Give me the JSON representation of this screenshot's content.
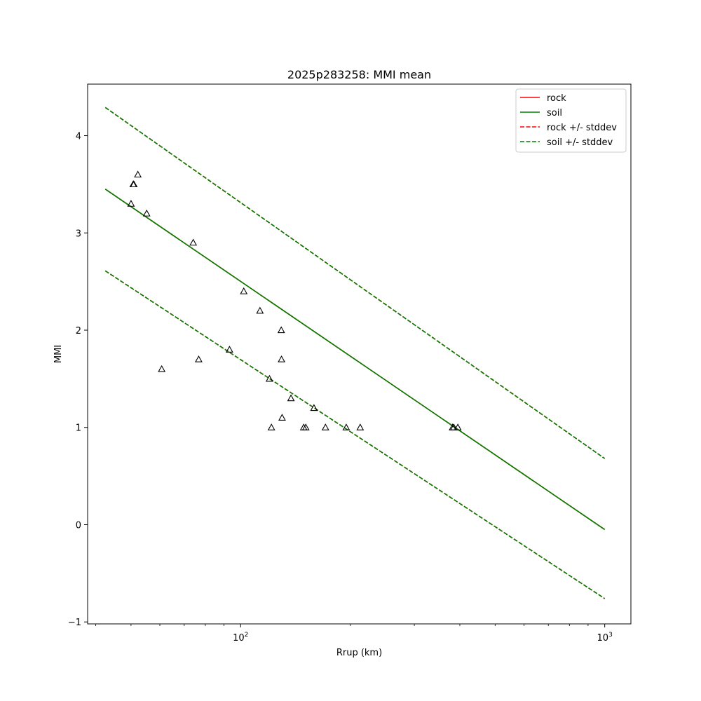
{
  "chart_data": {
    "type": "line",
    "title": "2025p283258: MMI mean",
    "xlabel": "Rrup (km)",
    "ylabel": "MMI",
    "xscale": "log",
    "xlim": [
      38,
      1180
    ],
    "ylim": [
      -1.02,
      4.53
    ],
    "x_ticks": [
      {
        "value": 100,
        "base": "10",
        "exp": "2"
      },
      {
        "value": 1000,
        "base": "10",
        "exp": "3"
      }
    ],
    "x_minor_ticks": [
      40,
      50,
      60,
      70,
      80,
      90,
      200,
      300,
      400,
      500,
      600,
      700,
      800,
      900
    ],
    "y_ticks": [
      {
        "value": -1,
        "label": "−1"
      },
      {
        "value": 0,
        "label": "0"
      },
      {
        "value": 1,
        "label": "1"
      },
      {
        "value": 2,
        "label": "2"
      },
      {
        "value": 3,
        "label": "3"
      },
      {
        "value": 4,
        "label": "4"
      }
    ],
    "legend_position": "top-right",
    "grid": false,
    "series": [
      {
        "name": "rock",
        "color": "#ff0000",
        "dash": "solid",
        "x": [
          42.5,
          1000
        ],
        "y": [
          3.45,
          -0.05
        ]
      },
      {
        "name": "soil",
        "color": "#008000",
        "dash": "solid",
        "x": [
          42.5,
          1000
        ],
        "y": [
          3.45,
          -0.05
        ]
      },
      {
        "name": "rock +/- stddev",
        "color": "#ff0000",
        "dash": "dashed",
        "x": [
          42.5,
          1000
        ],
        "y": [
          4.29,
          0.68
        ]
      },
      {
        "name": "rock +/- stddev lower",
        "color": "#ff0000",
        "dash": "dashed",
        "x": [
          42.5,
          1000
        ],
        "y": [
          2.61,
          -0.76
        ]
      },
      {
        "name": "soil +/- stddev",
        "color": "#008000",
        "dash": "dashed",
        "x": [
          42.5,
          1000
        ],
        "y": [
          4.29,
          0.68
        ]
      },
      {
        "name": "soil +/- stddev lower",
        "color": "#008000",
        "dash": "dashed",
        "x": [
          42.5,
          1000
        ],
        "y": [
          2.61,
          -0.76
        ]
      }
    ],
    "legend": [
      {
        "label": "rock",
        "color": "#ff0000",
        "dash": "solid"
      },
      {
        "label": "soil",
        "color": "#008000",
        "dash": "solid"
      },
      {
        "label": "rock +/- stddev",
        "color": "#ff0000",
        "dash": "dashed"
      },
      {
        "label": "soil +/- stddev",
        "color": "#008000",
        "dash": "dashed"
      }
    ],
    "scatter": {
      "marker": "triangle-open",
      "color": "#000000",
      "x": [
        50,
        50.7,
        50.9,
        52.2,
        55.2,
        60.7,
        74.1,
        76.7,
        93.2,
        102,
        113,
        120,
        121.5,
        129.3,
        129.5,
        130,
        137.5,
        149,
        151,
        159,
        171,
        195,
        213,
        382,
        385,
        395
      ],
      "y": [
        3.3,
        3.5,
        3.5,
        3.6,
        3.2,
        1.6,
        2.9,
        1.7,
        1.8,
        2.4,
        2.2,
        1.5,
        1.0,
        2.0,
        1.7,
        1.1,
        1.3,
        1.0,
        1.0,
        1.2,
        1.0,
        1.0,
        1.0,
        1.0,
        1.0,
        1.0
      ]
    }
  }
}
